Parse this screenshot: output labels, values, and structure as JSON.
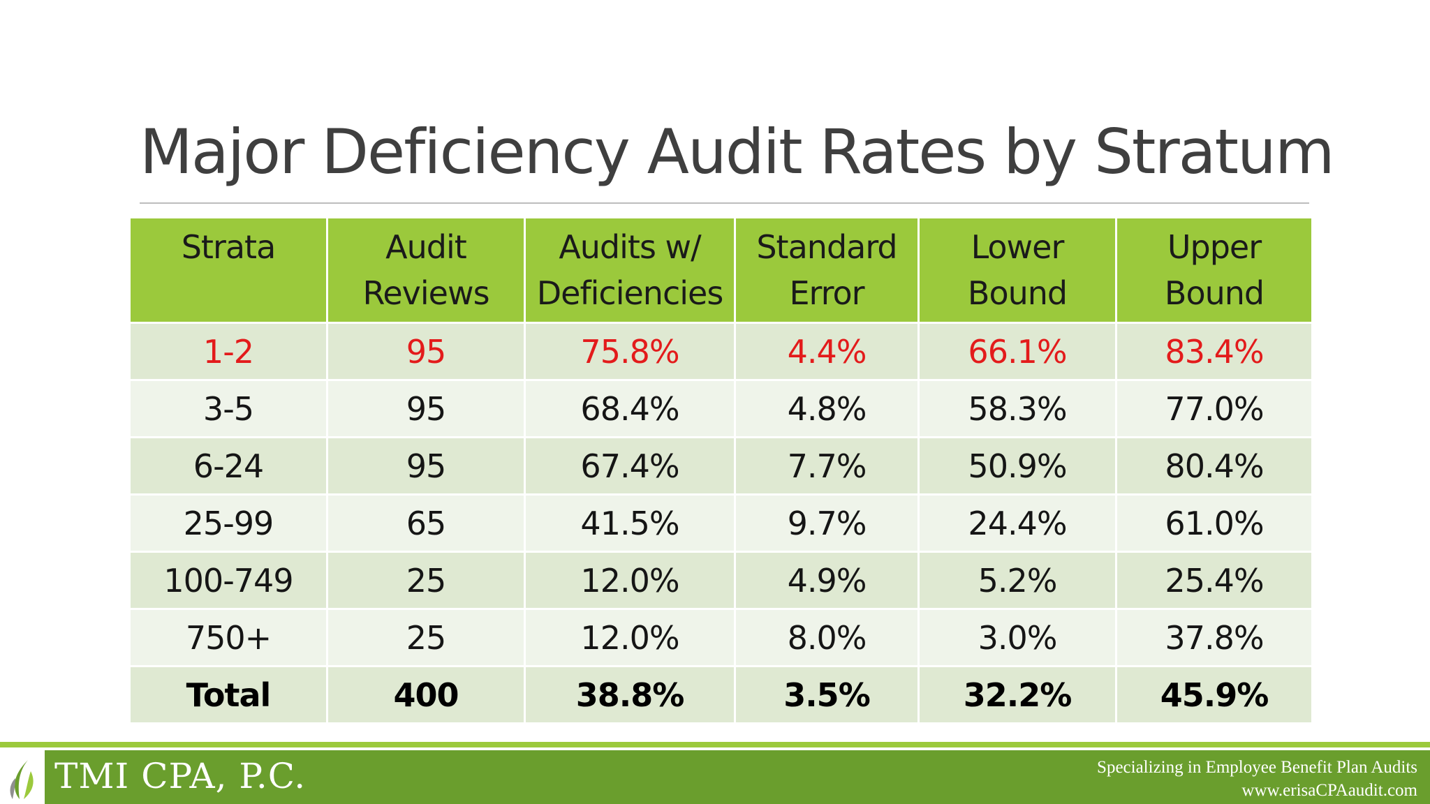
{
  "slide": {
    "title": "Major Deficiency Audit Rates by Stratum"
  },
  "table": {
    "headers": [
      {
        "line1": "Strata",
        "line2": ""
      },
      {
        "line1": "Audit",
        "line2": "Reviews"
      },
      {
        "line1": "Audits w/",
        "line2": "Deficiencies"
      },
      {
        "line1": "Standard",
        "line2": "Error"
      },
      {
        "line1": "Lower",
        "line2": "Bound"
      },
      {
        "line1": "Upper",
        "line2": "Bound"
      }
    ],
    "rows": [
      [
        "1-2",
        "95",
        "75.8%",
        "4.4%",
        "66.1%",
        "83.4%"
      ],
      [
        "3-5",
        "95",
        "68.4%",
        "4.8%",
        "58.3%",
        "77.0%"
      ],
      [
        "6-24",
        "95",
        "67.4%",
        "7.7%",
        "50.9%",
        "80.4%"
      ],
      [
        "25-99",
        "65",
        "41.5%",
        "9.7%",
        "24.4%",
        "61.0%"
      ],
      [
        "100-749",
        "25",
        "12.0%",
        "4.9%",
        "5.2%",
        "25.4%"
      ],
      [
        "750+",
        "25",
        "12.0%",
        "8.0%",
        "3.0%",
        "37.8%"
      ]
    ],
    "total": [
      "Total",
      "400",
      "38.8%",
      "3.5%",
      "32.2%",
      "45.9%"
    ],
    "highlight_color": "#e31b1b",
    "header_color": "#9bc93c"
  },
  "footer": {
    "company": "TMI CPA, P.C.",
    "tagline": "Specializing in Employee Benefit Plan Audits",
    "website": "www.erisaCPAaudit.com",
    "logo_icon": "leaf-icon",
    "bar_color": "#6a9e2d"
  }
}
